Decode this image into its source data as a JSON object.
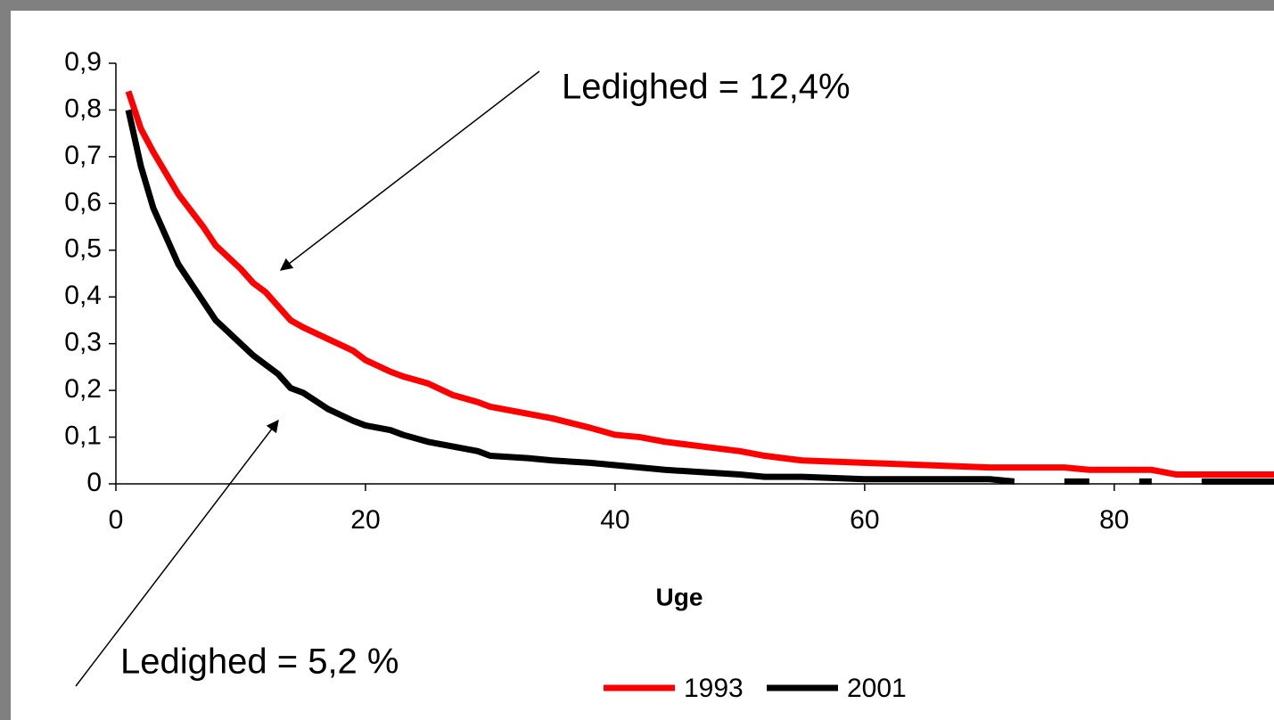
{
  "chart_data": {
    "type": "line",
    "xlabel": "Uge",
    "annotations": [
      "Ledighed = 12,4%",
      "Ledighed = 5,2 %"
    ],
    "x": [
      1,
      2,
      3,
      5,
      7,
      8,
      10,
      11,
      12,
      13,
      14,
      15,
      17,
      19,
      20,
      22,
      23,
      25,
      27,
      29,
      30,
      33,
      35,
      38,
      40,
      42,
      44,
      47,
      50,
      52,
      55,
      60,
      65,
      70,
      72,
      74,
      76,
      78,
      80,
      82,
      83,
      85,
      87,
      93
    ],
    "series": [
      {
        "name": "1993",
        "color": "#ff0000",
        "values": [
          0.84,
          0.76,
          0.71,
          0.62,
          0.55,
          0.51,
          0.46,
          0.43,
          0.41,
          0.38,
          0.35,
          0.335,
          0.31,
          0.285,
          0.265,
          0.24,
          0.23,
          0.215,
          0.19,
          0.175,
          0.165,
          0.15,
          0.14,
          0.12,
          0.105,
          0.1,
          0.09,
          0.08,
          0.07,
          0.06,
          0.05,
          0.045,
          0.04,
          0.035,
          0.035,
          0.035,
          0.035,
          0.03,
          0.03,
          0.03,
          0.03,
          0.02,
          0.02,
          0.02
        ]
      },
      {
        "name": "2001",
        "color": "#000000",
        "values": [
          0.8,
          0.68,
          0.59,
          0.47,
          0.39,
          0.35,
          0.3,
          0.275,
          0.255,
          0.235,
          0.205,
          0.195,
          0.16,
          0.135,
          0.125,
          0.115,
          0.105,
          0.09,
          0.08,
          0.07,
          0.06,
          0.055,
          0.05,
          0.045,
          0.04,
          0.035,
          0.03,
          0.025,
          0.02,
          0.015,
          0.015,
          0.01,
          0.01,
          0.01,
          0.005,
          null,
          0.005,
          0.005,
          null,
          0.005,
          0.005,
          null,
          0.005,
          0.005
        ]
      }
    ],
    "xlim": [
      0,
      92.8
    ],
    "xticks": [
      0,
      20,
      40,
      60,
      80
    ],
    "ylim": [
      0,
      0.9
    ],
    "yticks": [
      0,
      {
        "value": 0.1,
        "label": "0,1"
      },
      {
        "value": 0.2,
        "label": "0,2"
      },
      {
        "value": 0.3,
        "label": "0,3"
      },
      {
        "value": 0.4,
        "label": "0,4"
      },
      {
        "value": 0.5,
        "label": "0,5"
      },
      {
        "value": 0.6,
        "label": "0,6"
      },
      {
        "value": 0.7,
        "label": "0,7"
      },
      {
        "value": 0.8,
        "label": "0,8"
      },
      {
        "value": 0.9,
        "label": "0,9"
      }
    ],
    "legend": "bottom"
  }
}
